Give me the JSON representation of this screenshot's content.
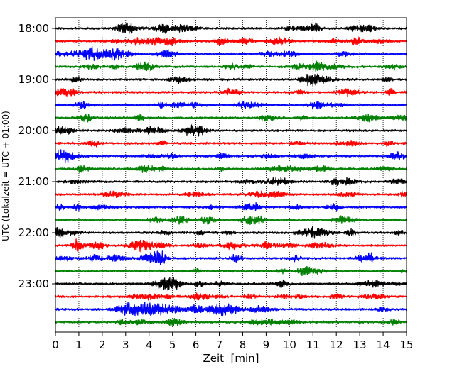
{
  "chart_data": {
    "type": "line",
    "chart_kind": "seismogram-helicorder",
    "title": "",
    "xlabel": "Zeit  [min]",
    "ylabel": "UTC (Lokalzeit = UTC + 01:00)",
    "xlim": [
      0,
      15
    ],
    "x_ticks": [
      "0",
      "1",
      "2",
      "3",
      "4",
      "5",
      "6",
      "7",
      "8",
      "9",
      "10",
      "11",
      "12",
      "13",
      "14",
      "15"
    ],
    "y_ticks": [
      "18:00",
      "19:00",
      "20:00",
      "21:00",
      "22:00",
      "23:00"
    ],
    "trace_interval_minutes": 15,
    "trace_count": 24,
    "trace_colors": [
      "#000000",
      "#ff0000",
      "#0000ff",
      "#008000"
    ],
    "grid": "vertical dotted",
    "traces": [
      {
        "start": "18:00",
        "color": "#000000"
      },
      {
        "start": "18:15",
        "color": "#ff0000"
      },
      {
        "start": "18:30",
        "color": "#0000ff"
      },
      {
        "start": "18:45",
        "color": "#008000"
      },
      {
        "start": "19:00",
        "color": "#000000"
      },
      {
        "start": "19:15",
        "color": "#ff0000"
      },
      {
        "start": "19:30",
        "color": "#0000ff"
      },
      {
        "start": "19:45",
        "color": "#008000"
      },
      {
        "start": "20:00",
        "color": "#000000"
      },
      {
        "start": "20:15",
        "color": "#ff0000"
      },
      {
        "start": "20:30",
        "color": "#0000ff"
      },
      {
        "start": "20:45",
        "color": "#008000"
      },
      {
        "start": "21:00",
        "color": "#000000"
      },
      {
        "start": "21:15",
        "color": "#ff0000"
      },
      {
        "start": "21:30",
        "color": "#0000ff"
      },
      {
        "start": "21:45",
        "color": "#008000"
      },
      {
        "start": "22:00",
        "color": "#000000"
      },
      {
        "start": "22:15",
        "color": "#ff0000"
      },
      {
        "start": "22:30",
        "color": "#0000ff"
      },
      {
        "start": "22:45",
        "color": "#008000"
      },
      {
        "start": "23:00",
        "color": "#000000"
      },
      {
        "start": "23:15",
        "color": "#ff0000"
      },
      {
        "start": "23:30",
        "color": "#0000ff",
        "event": {
          "x_start": 2.8,
          "x_peak": 3.4,
          "x_end": 9.5
        }
      },
      {
        "start": "23:45",
        "color": "#008000"
      }
    ]
  }
}
